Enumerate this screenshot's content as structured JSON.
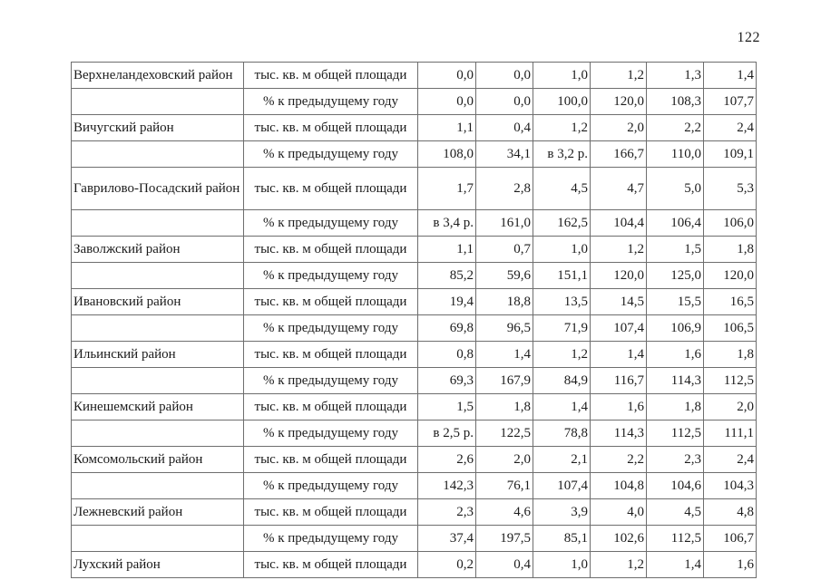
{
  "page": {
    "number": "122"
  },
  "table": {
    "rows": [
      {
        "district": "Верхнеландеховский район",
        "measure": "тыс. кв. м общей площади",
        "values": [
          "0,0",
          "0,0",
          "1,0",
          "1,2",
          "1,3",
          "1,4"
        ],
        "tall": false
      },
      {
        "district": "",
        "measure": "% к предыдущему году",
        "values": [
          "0,0",
          "0,0",
          "100,0",
          "120,0",
          "108,3",
          "107,7"
        ],
        "tall": false
      },
      {
        "district": "Вичугский район",
        "measure": "тыс. кв. м общей площади",
        "values": [
          "1,1",
          "0,4",
          "1,2",
          "2,0",
          "2,2",
          "2,4"
        ],
        "tall": false
      },
      {
        "district": "",
        "measure": "% к предыдущему году",
        "values": [
          "108,0",
          "34,1",
          "в 3,2 р.",
          "166,7",
          "110,0",
          "109,1"
        ],
        "tall": false
      },
      {
        "district": "Гаврилово-Посадский район",
        "measure": "тыс. кв. м общей площади",
        "values": [
          "1,7",
          "2,8",
          "4,5",
          "4,7",
          "5,0",
          "5,3"
        ],
        "tall": true
      },
      {
        "district": "",
        "measure": "% к предыдущему году",
        "values": [
          "в 3,4 р.",
          "161,0",
          "162,5",
          "104,4",
          "106,4",
          "106,0"
        ],
        "tall": false
      },
      {
        "district": "Заволжский район",
        "measure": "тыс. кв. м общей площади",
        "values": [
          "1,1",
          "0,7",
          "1,0",
          "1,2",
          "1,5",
          "1,8"
        ],
        "tall": false
      },
      {
        "district": "",
        "measure": "% к предыдущему году",
        "values": [
          "85,2",
          "59,6",
          "151,1",
          "120,0",
          "125,0",
          "120,0"
        ],
        "tall": false
      },
      {
        "district": "Ивановский район",
        "measure": "тыс. кв. м общей площади",
        "values": [
          "19,4",
          "18,8",
          "13,5",
          "14,5",
          "15,5",
          "16,5"
        ],
        "tall": false
      },
      {
        "district": "",
        "measure": "% к предыдущему году",
        "values": [
          "69,8",
          "96,5",
          "71,9",
          "107,4",
          "106,9",
          "106,5"
        ],
        "tall": false
      },
      {
        "district": "Ильинский район",
        "measure": "тыс. кв. м общей площади",
        "values": [
          "0,8",
          "1,4",
          "1,2",
          "1,4",
          "1,6",
          "1,8"
        ],
        "tall": false
      },
      {
        "district": "",
        "measure": "% к предыдущему году",
        "values": [
          "69,3",
          "167,9",
          "84,9",
          "116,7",
          "114,3",
          "112,5"
        ],
        "tall": false
      },
      {
        "district": "Кинешемский район",
        "measure": "тыс. кв. м общей площади",
        "values": [
          "1,5",
          "1,8",
          "1,4",
          "1,6",
          "1,8",
          "2,0"
        ],
        "tall": false
      },
      {
        "district": "",
        "measure": "% к предыдущему году",
        "values": [
          "в 2,5 р.",
          "122,5",
          "78,8",
          "114,3",
          "112,5",
          "111,1"
        ],
        "tall": false
      },
      {
        "district": "Комсомольский район",
        "measure": "тыс. кв. м общей площади",
        "values": [
          "2,6",
          "2,0",
          "2,1",
          "2,2",
          "2,3",
          "2,4"
        ],
        "tall": false
      },
      {
        "district": "",
        "measure": "% к предыдущему году",
        "values": [
          "142,3",
          "76,1",
          "107,4",
          "104,8",
          "104,6",
          "104,3"
        ],
        "tall": false
      },
      {
        "district": "Лежневский район",
        "measure": "тыс. кв. м общей площади",
        "values": [
          "2,3",
          "4,6",
          "3,9",
          "4,0",
          "4,5",
          "4,8"
        ],
        "tall": false
      },
      {
        "district": "",
        "measure": "% к предыдущему году",
        "values": [
          "37,4",
          "197,5",
          "85,1",
          "102,6",
          "112,5",
          "106,7"
        ],
        "tall": false
      },
      {
        "district": "Лухский район",
        "measure": "тыс. кв. м общей площади",
        "values": [
          "0,2",
          "0,4",
          "1,0",
          "1,2",
          "1,4",
          "1,6"
        ],
        "tall": false
      }
    ]
  }
}
